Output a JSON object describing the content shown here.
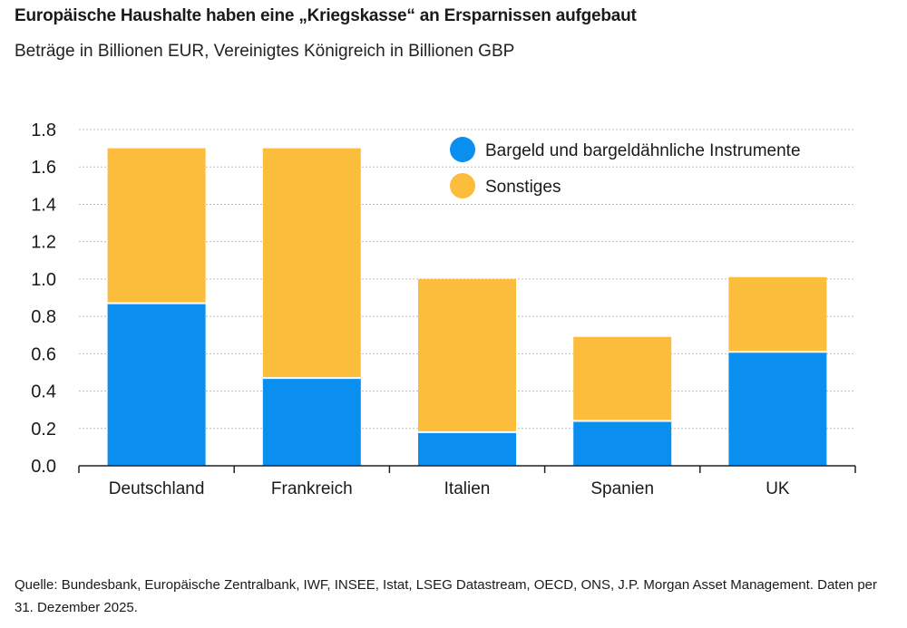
{
  "title": "Europäische Haushalte haben eine „Kriegskasse“ an Ersparnissen aufgebaut",
  "subtitle": "Beträge in Billionen EUR, Vereinigtes Königreich in Billionen GBP",
  "source": "Quelle: Bundesbank, Europäische Zentralbank, IWF, INSEE, Istat, LSEG Datastream, OECD, ONS, J.P. Morgan Asset Management. Daten per 31. Dezember 2025.",
  "colors": {
    "cash": "#0a8ff0",
    "other": "#fcbc3c",
    "grid": "#bdbdbd",
    "axis": "#222222"
  },
  "chart_data": {
    "type": "bar",
    "stacked": true,
    "categories": [
      "Deutschland",
      "Frankreich",
      "Italien",
      "Spanien",
      "UK"
    ],
    "series": [
      {
        "name": "Bargeld und bargeldähnliche Instrumente",
        "values": [
          0.87,
          0.47,
          0.18,
          0.24,
          0.61
        ]
      },
      {
        "name": "Sonstiges",
        "values": [
          0.83,
          1.23,
          0.82,
          0.45,
          0.4
        ]
      }
    ],
    "ylim": [
      0,
      1.8
    ],
    "yticks": [
      "0.0",
      "0.2",
      "0.4",
      "0.6",
      "0.8",
      "1.0",
      "1.2",
      "1.4",
      "1.6",
      "1.8"
    ],
    "grid": true,
    "legend_position": "top-right"
  }
}
